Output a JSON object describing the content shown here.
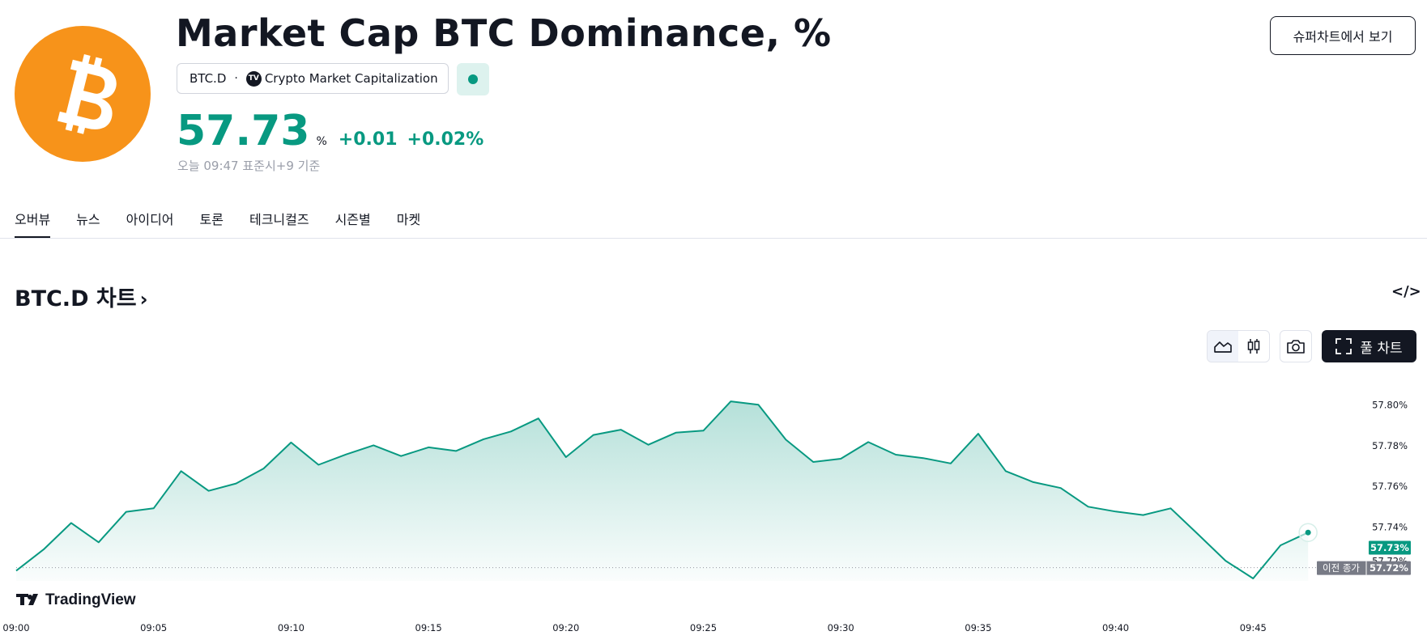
{
  "header": {
    "title": "Market Cap BTC Dominance, %",
    "symbol": "BTC.D",
    "separator": "·",
    "tv_badge": "TV",
    "exchange": "Crypto Market Capitalization",
    "super_chart_button": "슈퍼차트에서 보기"
  },
  "quote": {
    "price": "57.73",
    "unit": "%",
    "change": "+0.01",
    "change_percent": "+0.02%",
    "timestamp": "오늘 09:47 표준시+9 기준",
    "status": "market-open",
    "accent_color": "#089981"
  },
  "tabs": [
    {
      "label": "오버뷰",
      "active": true
    },
    {
      "label": "뉴스",
      "active": false
    },
    {
      "label": "아이디어",
      "active": false
    },
    {
      "label": "토론",
      "active": false
    },
    {
      "label": "테크니컬즈",
      "active": false
    },
    {
      "label": "시즌별",
      "active": false
    },
    {
      "label": "마켓",
      "active": false
    }
  ],
  "chart_section": {
    "title": "BTC.D 차트",
    "chevron": "›",
    "embed_icon": "</>",
    "full_chart_button": "풀 차트",
    "toolbar_icons": [
      "area-chart-icon",
      "candles-icon",
      "camera-icon",
      "fullscreen-icon"
    ],
    "watermark": "TradingView",
    "watermark_logo": "TV"
  },
  "chart_data": {
    "type": "area",
    "title": "",
    "xlabel": "",
    "ylabel": "",
    "x_ticks": [
      "09:00",
      "09:05",
      "09:10",
      "09:15",
      "09:20",
      "09:25",
      "09:30",
      "09:35",
      "09:40",
      "09:45"
    ],
    "y_ticks": [
      "57.80%",
      "57.78%",
      "57.76%",
      "57.74%"
    ],
    "y_tick_values": [
      57.8,
      57.78,
      57.76,
      57.74
    ],
    "ylim": [
      57.7135,
      57.813
    ],
    "xlim": [
      0,
      49.5
    ],
    "x": [
      0,
      1,
      2,
      3,
      4,
      5,
      6,
      7,
      8,
      9,
      10,
      11,
      12,
      13,
      14,
      15,
      16,
      17,
      18,
      19,
      20,
      21,
      22,
      23,
      24,
      25,
      26,
      27,
      28,
      29,
      30,
      31,
      32,
      33,
      34,
      35,
      36,
      37,
      38,
      39,
      40,
      41,
      42,
      43,
      44,
      45,
      46,
      47
    ],
    "values": [
      57.7185,
      57.729,
      57.742,
      57.7325,
      57.7475,
      57.7492,
      57.7675,
      57.7578,
      57.7614,
      57.7688,
      57.7816,
      57.7706,
      57.7757,
      57.7802,
      57.7749,
      57.7792,
      57.7774,
      57.7832,
      57.787,
      57.7934,
      57.7744,
      57.7853,
      57.7879,
      57.7805,
      57.7864,
      57.7874,
      57.8018,
      57.8002,
      57.783,
      57.772,
      57.7736,
      57.7818,
      57.7756,
      57.7739,
      57.7713,
      57.7859,
      57.7675,
      57.7621,
      57.7592,
      57.75,
      57.7476,
      57.7459,
      57.7492,
      57.7364,
      57.7234,
      57.7147,
      57.731,
      57.7373
    ],
    "current_value": 57.73,
    "current_label": "57.73%",
    "previous_close": 57.72,
    "previous_close_label": "이전 종가",
    "previous_close_value_label": "57.72%",
    "hidden_tick_fragment": "57.72%",
    "line_color": "#089981",
    "fill_color": "#089981",
    "grid": false
  }
}
